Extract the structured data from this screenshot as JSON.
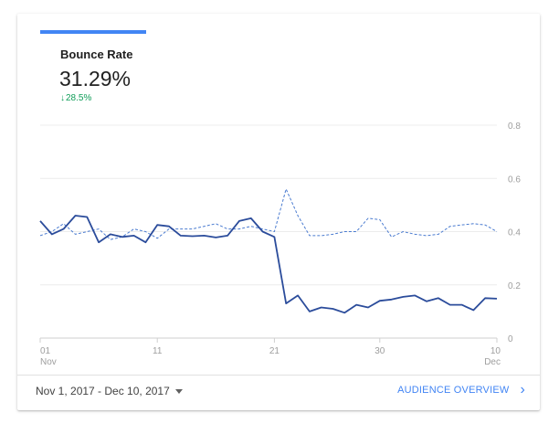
{
  "metric": {
    "title": "Bounce Rate",
    "value": "31.29%",
    "change_arrow": "↓",
    "change": "28.5%",
    "accent_color": "#4285f4",
    "change_color": "#0f9d58"
  },
  "chart_data": {
    "type": "line",
    "y_ticks": [
      "0.8",
      "0.6",
      "0.4",
      "0.2",
      "0"
    ],
    "ylim": [
      0,
      0.8
    ],
    "x_ticks": [
      {
        "index": 0,
        "label": "01",
        "sub": "Nov"
      },
      {
        "index": 10,
        "label": "11",
        "sub": ""
      },
      {
        "index": 20,
        "label": "21",
        "sub": ""
      },
      {
        "index": 29,
        "label": "30",
        "sub": ""
      },
      {
        "index": 39,
        "label": "10",
        "sub": "Dec"
      }
    ],
    "grid": true,
    "series": [
      {
        "style": "solid",
        "color": "#2b4c9b",
        "values": [
          0.44,
          0.39,
          0.41,
          0.46,
          0.455,
          0.36,
          0.39,
          0.38,
          0.385,
          0.36,
          0.425,
          0.42,
          0.385,
          0.383,
          0.385,
          0.378,
          0.385,
          0.44,
          0.45,
          0.4,
          0.38,
          0.13,
          0.16,
          0.1,
          0.115,
          0.11,
          0.095,
          0.125,
          0.115,
          0.14,
          0.145,
          0.155,
          0.16,
          0.138,
          0.15,
          0.125,
          0.125,
          0.105,
          0.15,
          0.148
        ]
      },
      {
        "style": "dashed",
        "color": "#4a7bd0",
        "values": [
          0.385,
          0.4,
          0.43,
          0.39,
          0.4,
          0.41,
          0.37,
          0.38,
          0.41,
          0.4,
          0.375,
          0.41,
          0.41,
          0.41,
          0.42,
          0.43,
          0.41,
          0.41,
          0.42,
          0.41,
          0.4,
          0.56,
          0.46,
          0.385,
          0.385,
          0.39,
          0.4,
          0.4,
          0.45,
          0.445,
          0.38,
          0.4,
          0.39,
          0.385,
          0.39,
          0.42,
          0.425,
          0.43,
          0.425,
          0.4
        ]
      }
    ]
  },
  "footer": {
    "date_range": "Nov 1, 2017 - Dec 10, 2017",
    "link_label": "AUDIENCE OVERVIEW",
    "chevron": "›"
  }
}
